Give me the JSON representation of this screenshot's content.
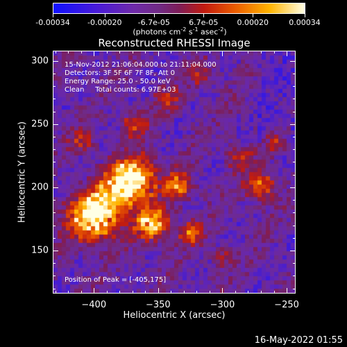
{
  "colorbar": {
    "tick_labels": [
      "-0.00034",
      "-0.00020",
      "-6.7e-05",
      "6.7e-05",
      "0.00020",
      "0.00034"
    ],
    "tick_values": [
      -0.00034,
      -0.0002,
      -6.7e-05,
      6.7e-05,
      0.0002,
      0.00034
    ],
    "units_main": "(photons cm",
    "units_sup1": "-2",
    "units_mid1": " s",
    "units_sup2": "-1",
    "units_mid2": " asec",
    "units_sup3": "-2",
    "units_end": ")",
    "colors": [
      "#1010ff",
      "#4b1bd6",
      "#702a85",
      "#7d1d58",
      "#c11b10",
      "#ea5a00",
      "#ffb400",
      "#ffffe6"
    ]
  },
  "plot": {
    "title": "Reconstructed RHESSI Image",
    "xlabel": "Heliocentric X (arcsec)",
    "ylabel": "Heliocentric Y (arcsec)",
    "xlim": [
      -432,
      -243
    ],
    "ylim": [
      116,
      308
    ],
    "x_ticks": [
      -400,
      -350,
      -300,
      -250
    ],
    "x_tick_labels": [
      "−400",
      "−350",
      "−300",
      "−250"
    ],
    "y_ticks": [
      150,
      200,
      250,
      300
    ],
    "y_tick_labels": [
      "150",
      "200",
      "250",
      "300"
    ]
  },
  "annotations": {
    "time_range": "15-Nov-2012 21:06:04.000 to 21:11:04.000",
    "detectors": "Detectors: 3F 5F 6F 7F 8F, Att 0",
    "energy_range": "Energy Range: 25.0 - 50.0 keV",
    "algorithm": "Clean     Total counts: 6.97E+03",
    "peak": "Position of Peak = [-405,175]"
  },
  "footer": {
    "timestamp": "16-May-2022 01:55"
  }
}
